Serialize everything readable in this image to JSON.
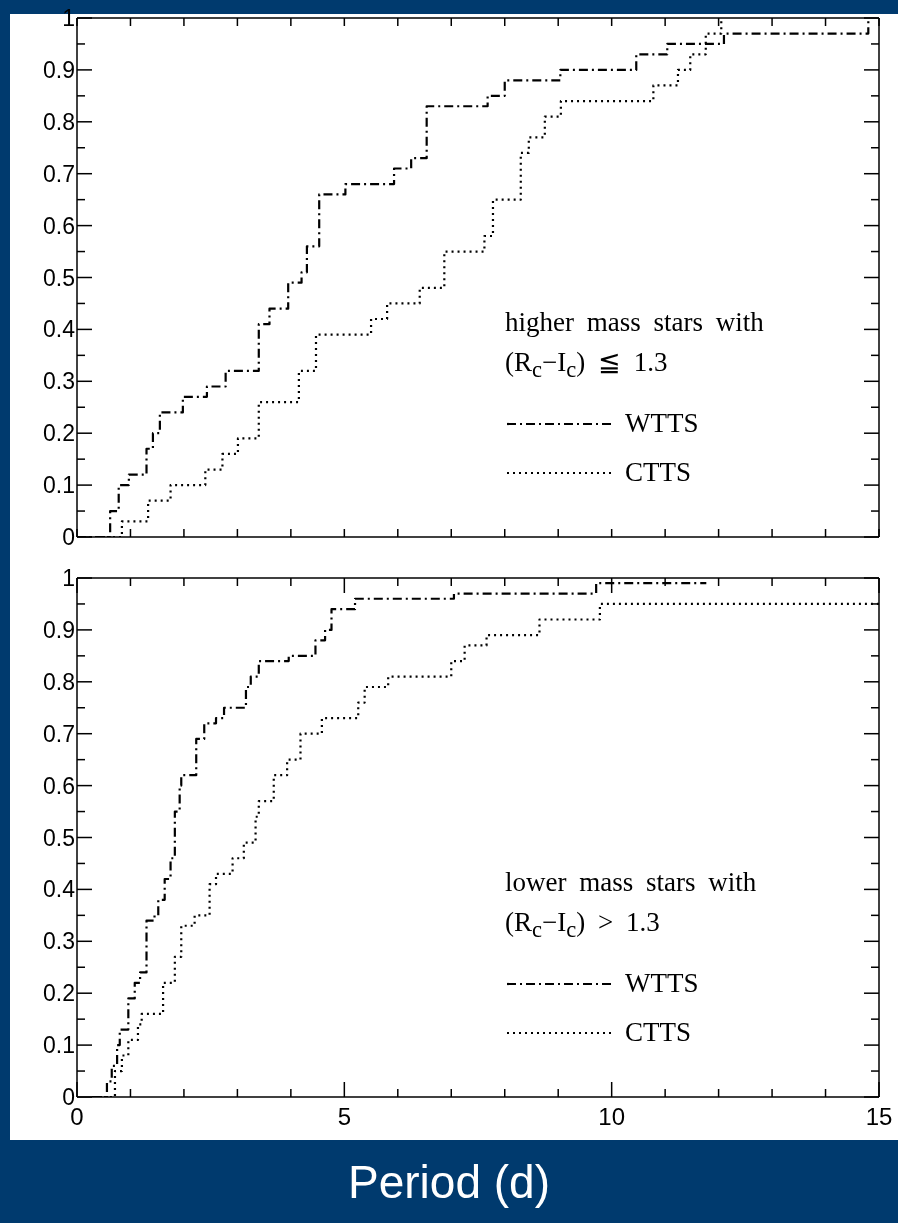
{
  "chart_data": [
    {
      "type": "step",
      "legend_title": "higher mass stars with (R$_{c}$−I$_{c}$) ≦ 1.3",
      "legend": "bottom right",
      "tick_labels": "y",
      "grid": false,
      "marker": "none",
      "xlim": [
        0,
        15
      ],
      "ylim": [
        0,
        1
      ],
      "xticks": [
        {
          "value": 0,
          "label": null
        },
        {
          "value": 1,
          "label": null
        },
        {
          "value": 2,
          "label": null
        },
        {
          "value": 3,
          "label": null
        },
        {
          "value": 4,
          "label": null
        },
        {
          "value": 5,
          "label": null
        },
        {
          "value": 6,
          "label": null
        },
        {
          "value": 7,
          "label": null
        },
        {
          "value": 8,
          "label": null
        },
        {
          "value": 9,
          "label": null
        },
        {
          "value": 10,
          "label": null
        },
        {
          "value": 11,
          "label": null
        },
        {
          "value": 12,
          "label": null
        },
        {
          "value": 13,
          "label": null
        },
        {
          "value": 14,
          "label": null
        },
        {
          "value": 15,
          "label": null
        }
      ],
      "yticks": [
        0,
        {
          "value": 0.05,
          "label": null
        },
        0.1,
        {
          "value": 0.15,
          "label": null
        },
        0.2,
        {
          "value": 0.25,
          "label": null
        },
        0.3,
        {
          "value": 0.35,
          "label": null
        },
        0.4,
        {
          "value": 0.45,
          "label": null
        },
        0.5,
        {
          "value": 0.55,
          "label": null
        },
        0.6,
        {
          "value": 0.65,
          "label": null
        },
        0.7,
        {
          "value": 0.75,
          "label": null
        },
        0.8,
        {
          "value": 0.85,
          "label": null
        },
        0.9,
        {
          "value": 0.95,
          "label": null
        },
        1
      ],
      "series": [
        {
          "name": "WTTS",
          "color": "#000000",
          "line_style": "dashed",
          "x": [
            0,
            0.62,
            0.78,
            0.97,
            1.3,
            1.42,
            1.55,
            1.98,
            2.43,
            2.78,
            3.4,
            3.6,
            3.95,
            4.2,
            4.3,
            4.53,
            5.02,
            5.93,
            6.25,
            6.54,
            7.68,
            8.0,
            9.04,
            10.46,
            11.04,
            12.1,
            14.8
          ],
          "values": [
            0,
            0.05,
            0.1,
            0.12,
            0.17,
            0.2,
            0.24,
            0.27,
            0.29,
            0.32,
            0.41,
            0.44,
            0.49,
            0.51,
            0.56,
            0.66,
            0.68,
            0.71,
            0.73,
            0.83,
            0.85,
            0.88,
            0.9,
            0.93,
            0.95,
            0.97,
            1.0
          ]
        },
        {
          "name": "CTTS",
          "color": "#000000",
          "line_style": "dotted",
          "x": [
            0,
            0.84,
            1.33,
            1.75,
            2.4,
            2.72,
            3.01,
            3.4,
            4.15,
            4.47,
            5.5,
            5.8,
            6.41,
            6.87,
            7.62,
            7.78,
            8.3,
            8.45,
            8.75,
            9.05,
            10.78,
            11.24,
            11.47,
            11.76,
            12.05
          ],
          "values": [
            0,
            0.03,
            0.07,
            0.1,
            0.13,
            0.16,
            0.19,
            0.26,
            0.32,
            0.39,
            0.42,
            0.45,
            0.48,
            0.55,
            0.58,
            0.65,
            0.74,
            0.77,
            0.81,
            0.84,
            0.87,
            0.9,
            0.93,
            0.97,
            1.0
          ]
        }
      ]
    },
    {
      "type": "step",
      "legend_title": "lower mass stars with (R$_{c}$−I$_{c}$) > 1.3",
      "legend": "bottom right",
      "xlabel": "Period (d)",
      "grid": false,
      "marker": "none",
      "xlim": [
        0,
        15
      ],
      "ylim": [
        0,
        1
      ],
      "xticks": [
        0,
        {
          "value": 1,
          "label": null
        },
        {
          "value": 2,
          "label": null
        },
        {
          "value": 3,
          "label": null
        },
        {
          "value": 4,
          "label": null
        },
        5,
        {
          "value": 6,
          "label": null
        },
        {
          "value": 7,
          "label": null
        },
        {
          "value": 8,
          "label": null
        },
        {
          "value": 9,
          "label": null
        },
        10,
        {
          "value": 11,
          "label": null
        },
        {
          "value": 12,
          "label": null
        },
        {
          "value": 13,
          "label": null
        },
        {
          "value": 14,
          "label": null
        },
        15
      ],
      "yticks": [
        0,
        {
          "value": 0.05,
          "label": null
        },
        0.1,
        {
          "value": 0.15,
          "label": null
        },
        0.2,
        {
          "value": 0.25,
          "label": null
        },
        0.3,
        {
          "value": 0.35,
          "label": null
        },
        0.4,
        {
          "value": 0.45,
          "label": null
        },
        0.5,
        {
          "value": 0.55,
          "label": null
        },
        0.6,
        {
          "value": 0.65,
          "label": null
        },
        0.7,
        {
          "value": 0.75,
          "label": null
        },
        0.8,
        {
          "value": 0.85,
          "label": null
        },
        0.9,
        {
          "value": 0.95,
          "label": null
        },
        1
      ],
      "series": [
        {
          "name": "WTTS",
          "color": "#000000",
          "line_style": "dashed",
          "x": [
            0.3,
            0.56,
            0.65,
            0.75,
            0.8,
            0.96,
            1.08,
            1.18,
            1.3,
            1.45,
            1.52,
            1.64,
            1.75,
            1.83,
            1.92,
            1.95,
            2.23,
            2.38,
            2.6,
            2.75,
            3.16,
            3.25,
            3.4,
            3.96,
            4.46,
            4.64,
            4.76,
            5.2,
            7.05,
            9.71,
            11.77
          ],
          "values": [
            0,
            0.03,
            0.06,
            0.1,
            0.13,
            0.19,
            0.22,
            0.24,
            0.34,
            0.35,
            0.38,
            0.42,
            0.46,
            0.55,
            0.6,
            0.62,
            0.69,
            0.72,
            0.73,
            0.75,
            0.79,
            0.81,
            0.84,
            0.85,
            0.88,
            0.9,
            0.94,
            0.96,
            0.97,
            0.99,
            0.99
          ]
        },
        {
          "name": "CTTS",
          "color": "#000000",
          "line_style": "dotted",
          "x": [
            0.28,
            0.71,
            0.84,
            0.96,
            1.14,
            1.21,
            1.61,
            1.83,
            1.95,
            2.2,
            2.48,
            2.6,
            2.91,
            3.12,
            3.34,
            3.4,
            3.68,
            3.93,
            4.18,
            4.58,
            5.26,
            5.38,
            5.82,
            7.0,
            7.25,
            7.66,
            8.65,
            9.78,
            15
          ],
          "values": [
            0,
            0.05,
            0.08,
            0.11,
            0.14,
            0.16,
            0.22,
            0.27,
            0.33,
            0.35,
            0.41,
            0.43,
            0.46,
            0.49,
            0.54,
            0.57,
            0.62,
            0.65,
            0.7,
            0.73,
            0.76,
            0.79,
            0.81,
            0.84,
            0.87,
            0.89,
            0.92,
            0.95,
            0.95
          ]
        }
      ]
    }
  ]
}
